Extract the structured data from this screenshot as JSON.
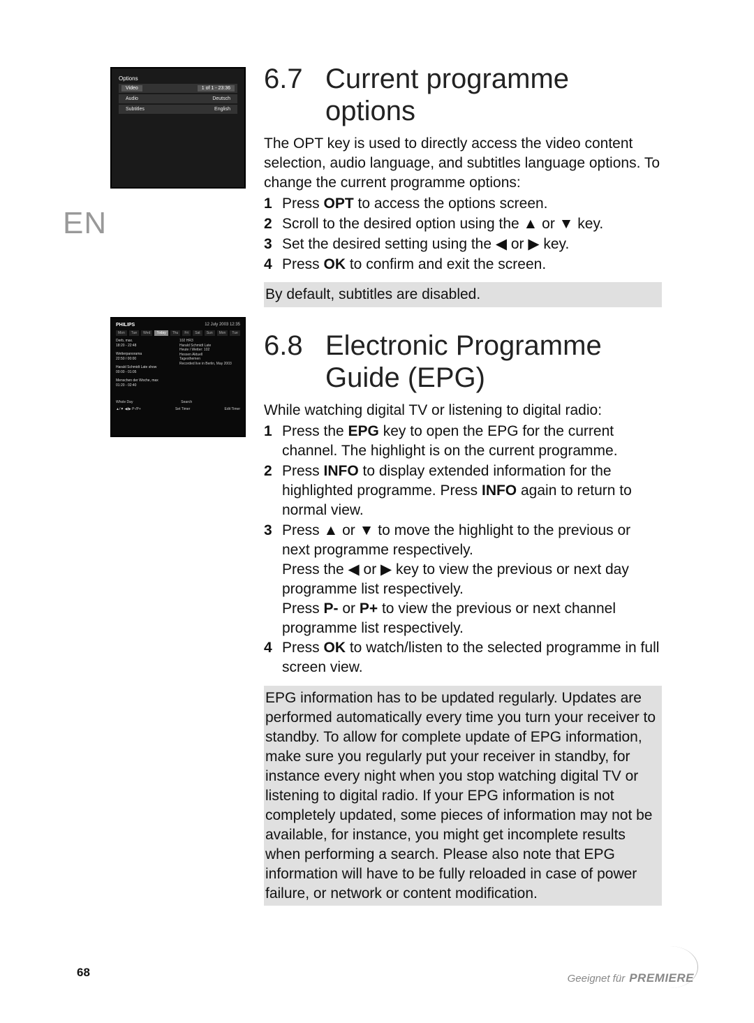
{
  "lang_tag": "EN",
  "section_67": {
    "num": "6.7",
    "title": "Current programme options",
    "intro": "The OPT key is used to directly access the video content selection, audio language, and subtitles language options. To change the current programme options:",
    "steps": [
      {
        "n": "1",
        "html": "Press <b>OPT</b> to access the options screen."
      },
      {
        "n": "2",
        "html": "Scroll to the desired option using the ▲ or ▼ key."
      },
      {
        "n": "3",
        "html": "Set the desired setting using the ◀ or ▶ key."
      },
      {
        "n": "4",
        "html": "Press <b>OK</b> to confirm and exit the screen."
      }
    ],
    "note": "By default, subtitles are disabled."
  },
  "section_68": {
    "num": "6.8",
    "title": "Electronic Programme Guide (EPG)",
    "intro": "While watching digital TV or listening to digital radio:",
    "steps": [
      {
        "n": "1",
        "html": "Press the <b>EPG</b> key to open the EPG for the current channel. The highlight is on the current programme."
      },
      {
        "n": "2",
        "html": "Press <b>INFO</b> to display extended information for the highlighted programme. Press <b>INFO</b> again to return to normal view."
      },
      {
        "n": "3",
        "html": "Press ▲ or ▼ to move the highlight to the previous or next programme respectively.<br>Press the ◀ or ▶ key to view the previous or next day programme list respectively.<br>Press <b>P-</b> or <b>P+</b> to view the previous or next channel programme list respectively."
      },
      {
        "n": "4",
        "html": "Press <b>OK</b> to watch/listen to the selected programme in full screen view."
      }
    ],
    "note": "EPG information has to be updated regularly. Updates are performed automatically every time you turn your receiver to standby. To allow for complete update of EPG information, make sure you regularly put your receiver in standby, for instance every night when you stop watching digital TV or listening to digital radio. If your EPG information is not completely updated, some pieces of information may not be available, for instance, you might get incomplete results when performing a search. Please also note that EPG information will have to be fully reloaded in case of power failure, or network or content modification."
  },
  "screenshot1": {
    "title": "Options",
    "rows": [
      {
        "left": "Video",
        "right": "1 of 1 - 23:36"
      },
      {
        "left": "Audio",
        "right": "Deutsch"
      },
      {
        "left": "Subtitles",
        "right": "English"
      }
    ]
  },
  "screenshot2": {
    "brand": "PHILIPS",
    "header_right": "12 July 2003   12:35",
    "tabs": [
      "Mon",
      "Tue",
      "Wed",
      "Today",
      "Thu",
      "Fri",
      "Sat",
      "Sun",
      "Mon",
      "Tue"
    ],
    "tab_selected": 3,
    "left_items": [
      "Derb, max.\n18:20 - 22:48",
      "Wetterpanorama\n22:50 / 00:00",
      "Harald Schmidt Late show\n00:00 - 01:05",
      "Menschen der Woche, max\n01:20 - 02:40"
    ],
    "right_items": [
      "102   HR3",
      "Harald Schmidt Late",
      "Heute / Wetter: 102",
      "Hessen Aktuell",
      "Tagesthemen",
      "",
      "Recorded live in Berlin, May 2003"
    ],
    "bottom_left": "Whole Day",
    "bottom_mid": "Search",
    "bottom_l2": "▲/▼   ◀/▶   P-/P+",
    "bottom_c2": "Set Timer",
    "bottom_r2": "Edit Timer"
  },
  "page_number": "68",
  "footer": {
    "geeignet": "Geeignet für",
    "brand": "PREMIERE"
  },
  "colors": {
    "text": "#111111",
    "lang_tag": "#999999",
    "note_bg": "#e0e0e0",
    "footer": "#888888",
    "scr_bg": "#1a1a1a"
  }
}
